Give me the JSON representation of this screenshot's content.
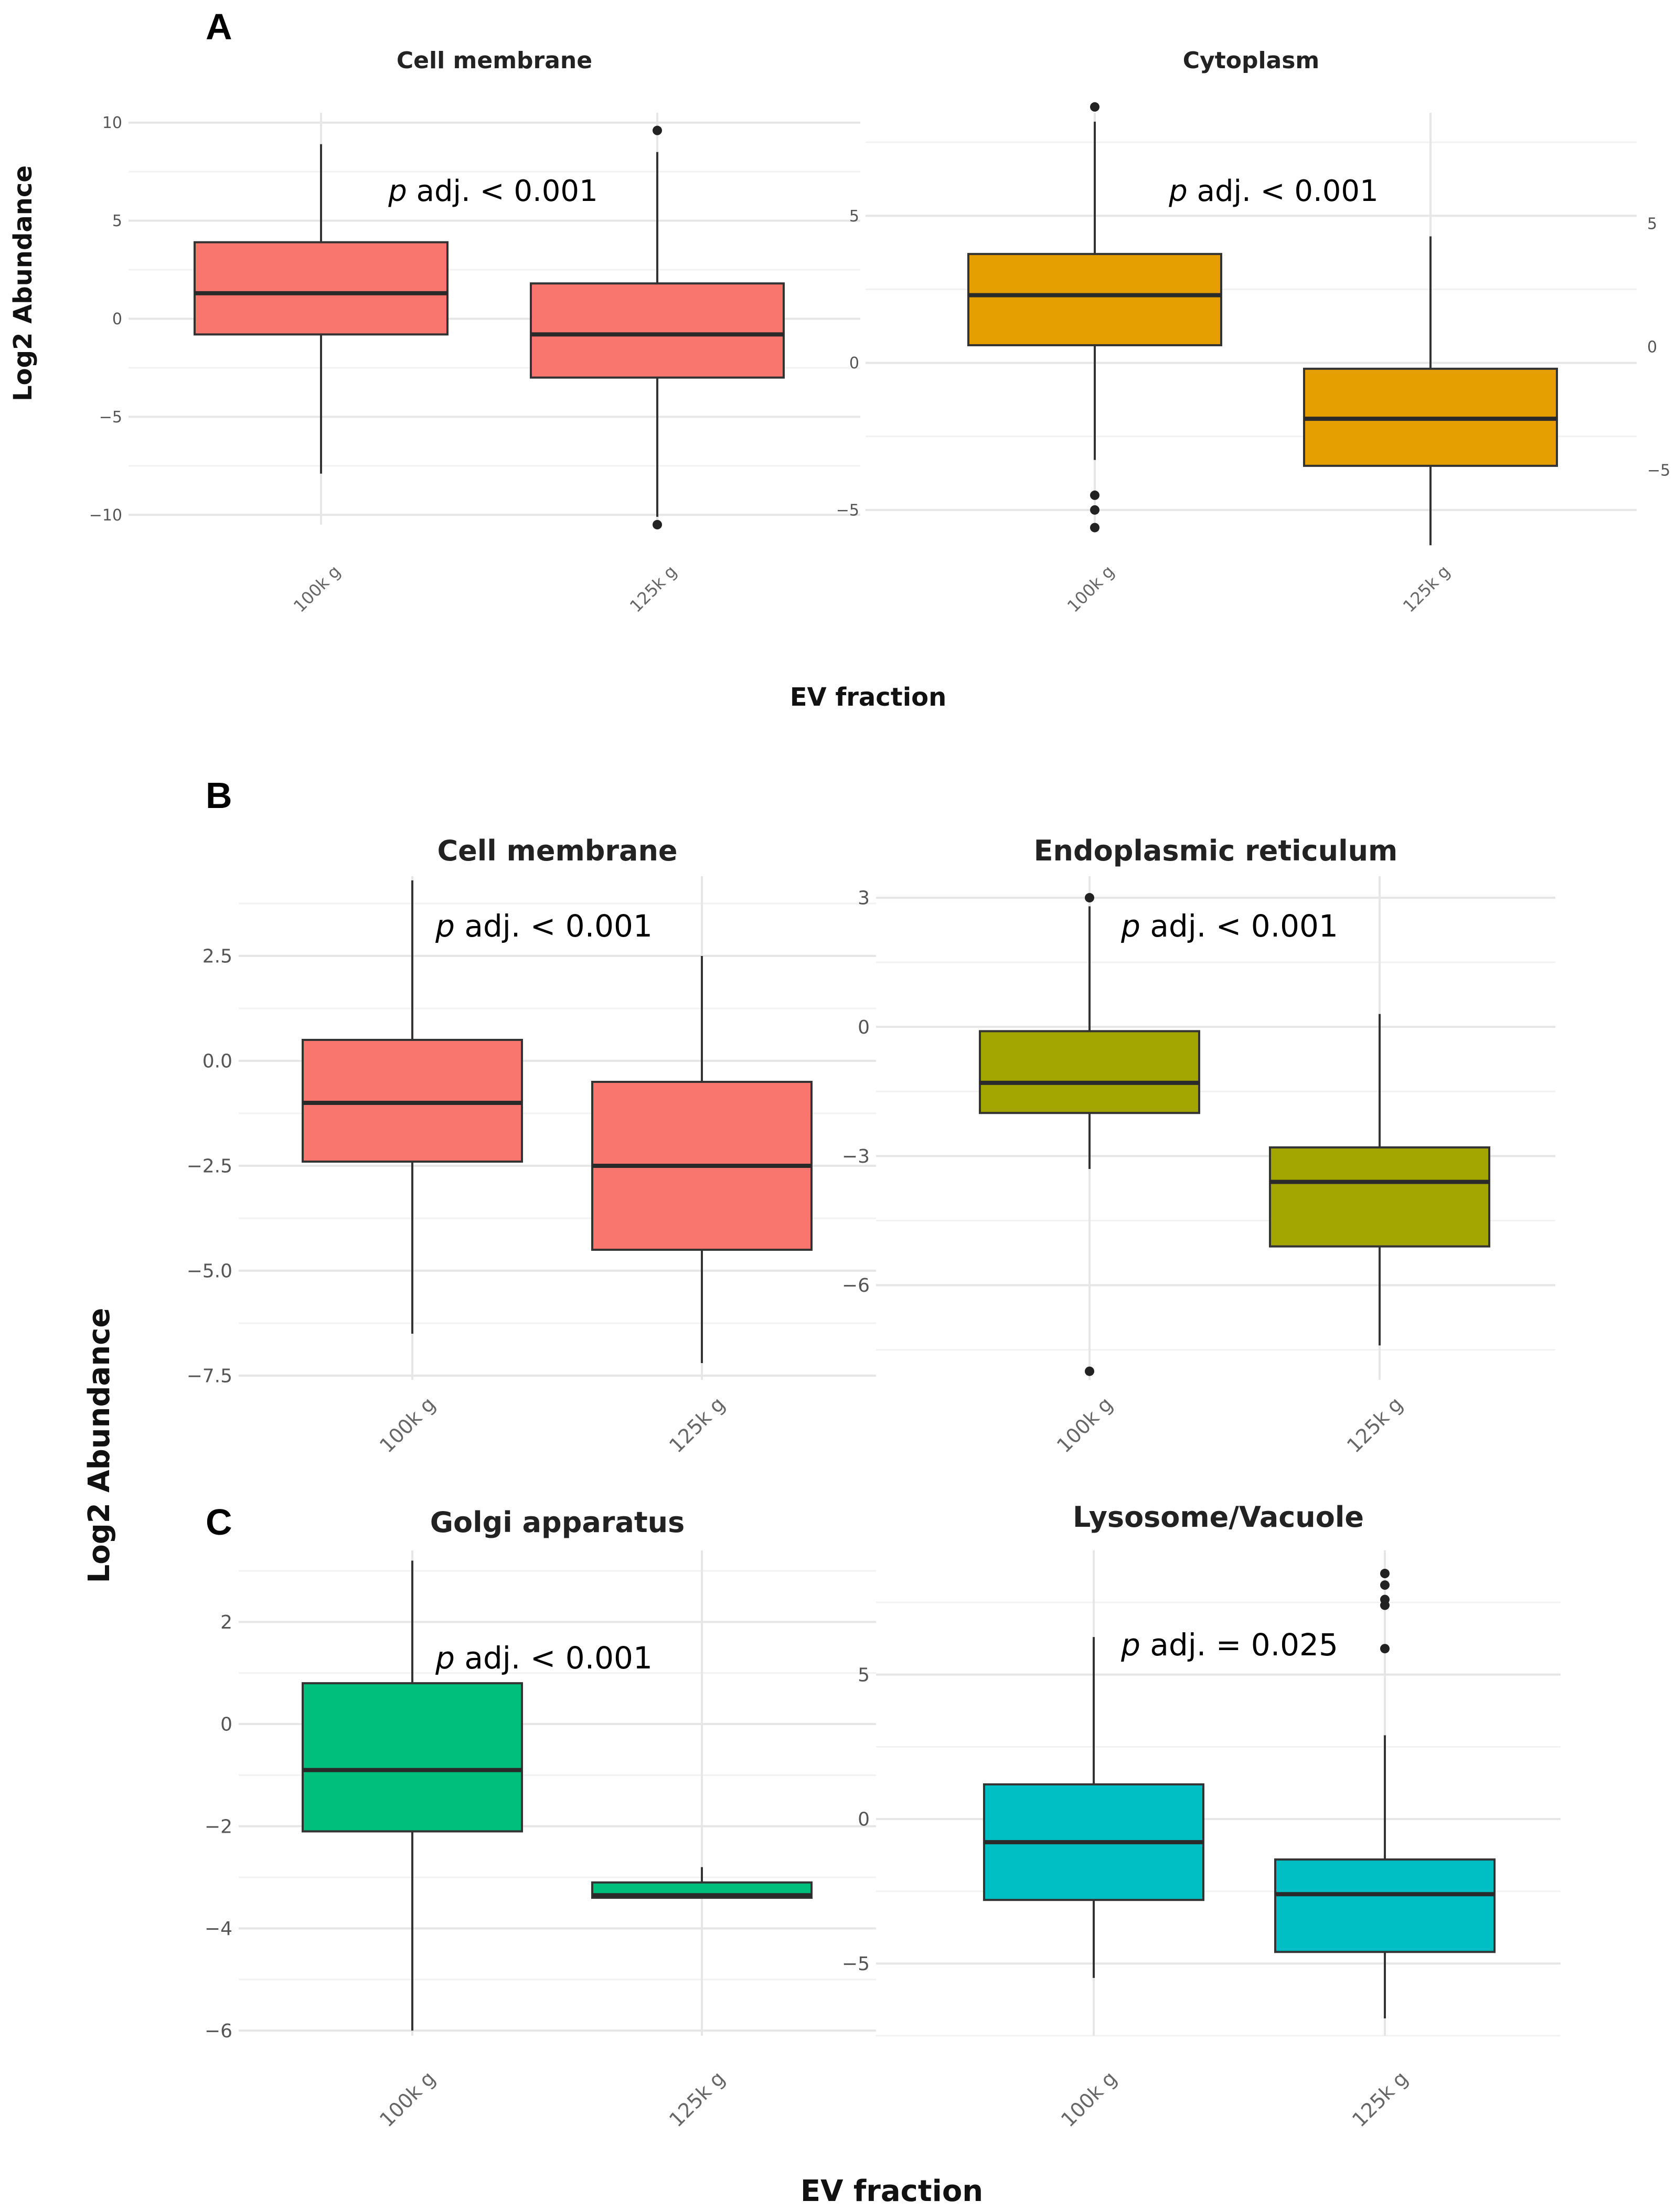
{
  "figure": {
    "axis_label_y": "Log2 Abundance",
    "axis_label_x": "EV fraction",
    "panel_letters": [
      "A",
      "B",
      "C"
    ]
  },
  "chart_data": [
    {
      "type": "box",
      "panel": "A",
      "title": "Cell membrane",
      "annotation_italic": "p",
      "annotation_rest": " adj. < 0.001",
      "ylabel": "Log2 Abundance",
      "xlabel": "EV fraction",
      "categories": [
        "100k g",
        "125k g"
      ],
      "ylim": [
        -10.5,
        10.5
      ],
      "yticks": [
        10,
        5,
        0,
        -5,
        -10
      ],
      "ytick_labels": [
        "10",
        "5",
        "0",
        "−5",
        "−10"
      ],
      "color": "#F8766D",
      "boxes": [
        {
          "category": "100k g",
          "whisker_low": -7.9,
          "q1": -0.8,
          "median": 1.3,
          "q3": 3.9,
          "whisker_high": 8.9,
          "outliers": []
        },
        {
          "category": "125k g",
          "whisker_low": -10.1,
          "q1": -3.0,
          "median": -0.8,
          "q3": 1.8,
          "whisker_high": 8.5,
          "outliers": [
            9.6,
            -10.5
          ]
        }
      ]
    },
    {
      "type": "box",
      "panel": "A",
      "title": "Cytoplasm",
      "annotation_italic": "p",
      "annotation_rest": " adj. < 0.001",
      "ylabel": "Log2 Abundance",
      "xlabel": "EV fraction",
      "categories": [
        "100k g",
        "125k g"
      ],
      "ylim": [
        -5.5,
        8.5
      ],
      "yticks": [
        5,
        0,
        -5
      ],
      "ytick_labels": [
        "5",
        "0",
        "−5"
      ],
      "color": "#E69F00",
      "boxes": [
        {
          "category": "100k g",
          "whisker_low": -3.3,
          "q1": 0.6,
          "median": 2.3,
          "q3": 3.7,
          "whisker_high": 8.2,
          "outliers": [
            8.7,
            -4.5,
            -5.0,
            -5.6
          ]
        },
        {
          "category": "125k g",
          "whisker_low": -6.2,
          "q1": -3.5,
          "median": -1.9,
          "q3": -0.2,
          "whisker_high": 4.3,
          "outliers": []
        }
      ]
    },
    {
      "type": "box",
      "panel": "B",
      "title": "Cell membrane",
      "annotation_italic": "p",
      "annotation_rest": " adj. < 0.001",
      "ylabel": "Log2 Abundance",
      "xlabel": "EV fraction",
      "categories": [
        "100k g",
        "125k g"
      ],
      "ylim": [
        -7.6,
        4.4
      ],
      "yticks": [
        2.5,
        0,
        -2.5,
        -5,
        -7.5
      ],
      "ytick_labels": [
        "2.5",
        "0.0",
        "−2.5",
        "−5.0",
        "−7.5"
      ],
      "color": "#F8766D",
      "boxes": [
        {
          "category": "100k g",
          "whisker_low": -6.5,
          "q1": -2.4,
          "median": -1.0,
          "q3": 0.5,
          "whisker_high": 4.3,
          "outliers": []
        },
        {
          "category": "125k g",
          "whisker_low": -7.2,
          "q1": -4.5,
          "median": -2.5,
          "q3": -0.5,
          "whisker_high": 2.5,
          "outliers": []
        }
      ]
    },
    {
      "type": "box",
      "panel": "B",
      "title": "Endoplasmic reticulum",
      "annotation_italic": "p",
      "annotation_rest": " adj. < 0.001",
      "ylabel": "Log2 Abundance",
      "xlabel": "EV fraction",
      "categories": [
        "100k g",
        "125k g"
      ],
      "ylim": [
        -8.2,
        3.5
      ],
      "yticks": [
        3,
        0,
        -3,
        -6
      ],
      "ytick_labels": [
        "3",
        "0",
        "−3",
        "−6"
      ],
      "color": "#A3A500",
      "boxes": [
        {
          "category": "100k g",
          "whisker_low": -3.3,
          "q1": -2.0,
          "median": -1.3,
          "q3": -0.1,
          "whisker_high": 2.8,
          "outliers": [
            3.0,
            -8.0
          ]
        },
        {
          "category": "125k g",
          "whisker_low": -7.4,
          "q1": -5.1,
          "median": -3.6,
          "q3": -2.8,
          "whisker_high": 0.3,
          "outliers": []
        }
      ]
    },
    {
      "type": "box",
      "panel": "C",
      "title": "Golgi apparatus",
      "annotation_italic": "p",
      "annotation_rest": " adj. < 0.001",
      "ylabel": "Log2 Abundance",
      "xlabel": "EV fraction",
      "categories": [
        "100k g",
        "125k g"
      ],
      "ylim": [
        -6.1,
        3.4
      ],
      "yticks": [
        2,
        0,
        -2,
        -4,
        -6
      ],
      "ytick_labels": [
        "2",
        "0",
        "−2",
        "−4",
        "−6"
      ],
      "color": "#00BF7D",
      "boxes": [
        {
          "category": "100k g",
          "whisker_low": -6.0,
          "q1": -2.1,
          "median": -0.9,
          "q3": 0.8,
          "whisker_high": 3.2,
          "outliers": []
        },
        {
          "category": "125k g",
          "whisker_low": -3.4,
          "q1": -3.4,
          "median": -3.35,
          "q3": -3.1,
          "whisker_high": -2.8,
          "outliers": []
        }
      ]
    },
    {
      "type": "box",
      "panel": "C",
      "title": "Lysosome/Vacuole",
      "annotation_italic": "p",
      "annotation_rest": " adj. = 0.025",
      "ylabel": "Log2 Abundance",
      "xlabel": "EV fraction",
      "categories": [
        "100k g",
        "125k g"
      ],
      "ylim": [
        -7.5,
        9.3
      ],
      "yticks": [
        5,
        0,
        -5
      ],
      "ytick_labels": [
        "5",
        "0",
        "−5"
      ],
      "color": "#00BFC4",
      "boxes": [
        {
          "category": "100k g",
          "whisker_low": -5.5,
          "q1": -2.8,
          "median": -0.8,
          "q3": 1.2,
          "whisker_high": 6.3,
          "outliers": []
        },
        {
          "category": "125k g",
          "whisker_low": -6.9,
          "q1": -4.6,
          "median": -2.6,
          "q3": -1.4,
          "whisker_high": 2.9,
          "outliers": [
            8.5,
            8.1,
            7.6,
            7.4,
            5.9
          ]
        }
      ]
    }
  ]
}
